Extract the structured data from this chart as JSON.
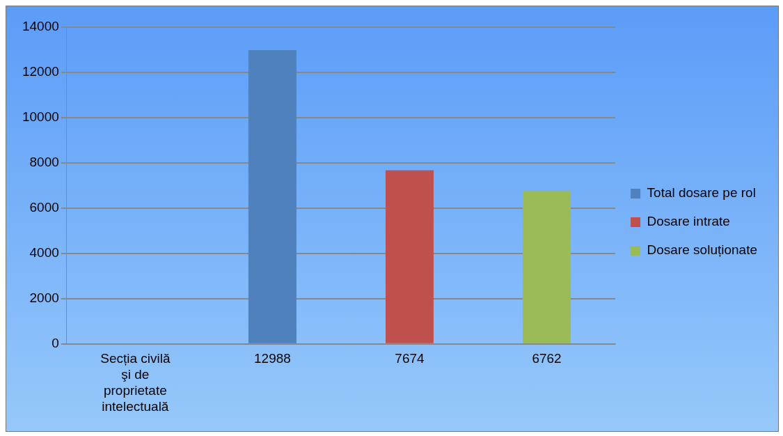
{
  "chart_data": {
    "type": "bar",
    "categories": [
      "Secția civilă şi de proprietate intelectuală",
      "12988",
      "7674",
      "6762"
    ],
    "series": [
      {
        "name": "Total dosare pe rol",
        "color": "#4f81bd",
        "values": [
          null,
          12988,
          null,
          null
        ]
      },
      {
        "name": "Dosare intrate",
        "color": "#c0504d",
        "values": [
          null,
          null,
          7674,
          null
        ]
      },
      {
        "name": "Dosare soluționate",
        "color": "#9bbb59",
        "values": [
          null,
          null,
          null,
          6762
        ]
      }
    ],
    "ylim": [
      0,
      14000
    ],
    "yticks": [
      0,
      2000,
      4000,
      6000,
      8000,
      10000,
      12000,
      14000
    ],
    "grid": "y",
    "legend": "right"
  }
}
